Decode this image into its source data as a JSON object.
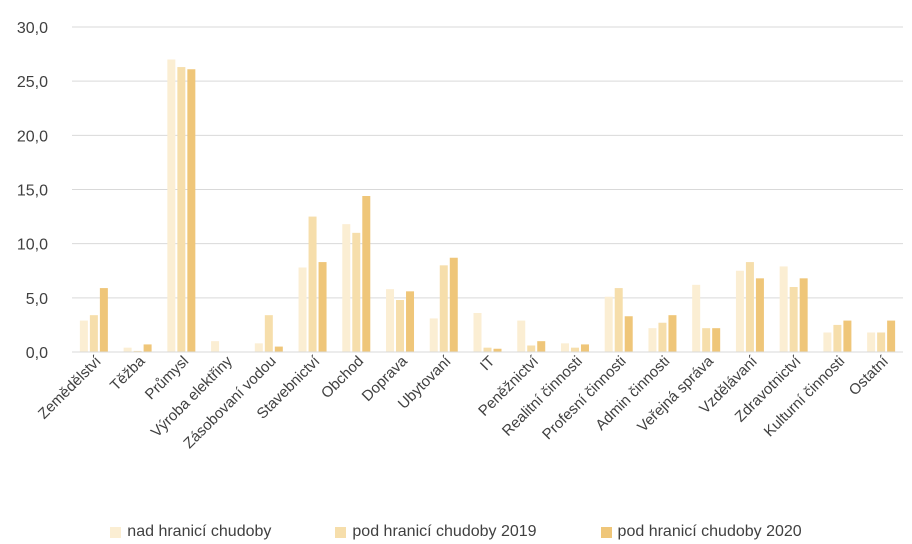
{
  "chart_data": {
    "type": "bar",
    "title": "",
    "xlabel": "",
    "ylabel": "",
    "ylim": [
      0,
      30
    ],
    "yticks": [
      "0,0",
      "5,0",
      "10,0",
      "15,0",
      "20,0",
      "25,0",
      "30,0"
    ],
    "grid": "horizontal",
    "legend_position": "bottom",
    "categories": [
      "Zemědělství",
      "Těžba",
      "Průmysl",
      "Výroba elektřiny",
      "Zásobovaní vodou",
      "Stavebnictví",
      "Obchod",
      "Doprava",
      "Ubytovaní",
      "IT",
      "Peněžnictví",
      "Realitní činnosti",
      "Profesní činnosti",
      "Admin činnosti",
      "Veřejná správa",
      "Vzdělávaní",
      "Zdravotnictví",
      "Kulturní činnosti",
      "Ostatní"
    ],
    "series": [
      {
        "name": "nad hranicí chudoby",
        "color": "#fbeed3",
        "values": [
          2.9,
          0.4,
          27.0,
          1.0,
          0.8,
          7.8,
          11.8,
          5.8,
          3.1,
          3.6,
          2.9,
          0.8,
          5.1,
          2.2,
          6.2,
          7.5,
          7.9,
          1.8,
          1.8
        ]
      },
      {
        "name": "pod hranicí chudoby 2019",
        "color": "#f6deab",
        "values": [
          3.4,
          0.1,
          26.3,
          0.0,
          3.4,
          12.5,
          11.0,
          4.8,
          8.0,
          0.4,
          0.6,
          0.4,
          5.9,
          2.7,
          2.2,
          8.3,
          6.0,
          2.5,
          1.8
        ]
      },
      {
        "name": "pod hranicí chudoby 2020",
        "color": "#efc679",
        "values": [
          5.9,
          0.7,
          26.1,
          0.0,
          0.5,
          8.3,
          14.4,
          5.6,
          8.7,
          0.3,
          1.0,
          0.7,
          3.3,
          3.4,
          2.2,
          6.8,
          6.8,
          2.9,
          2.9
        ]
      }
    ]
  }
}
